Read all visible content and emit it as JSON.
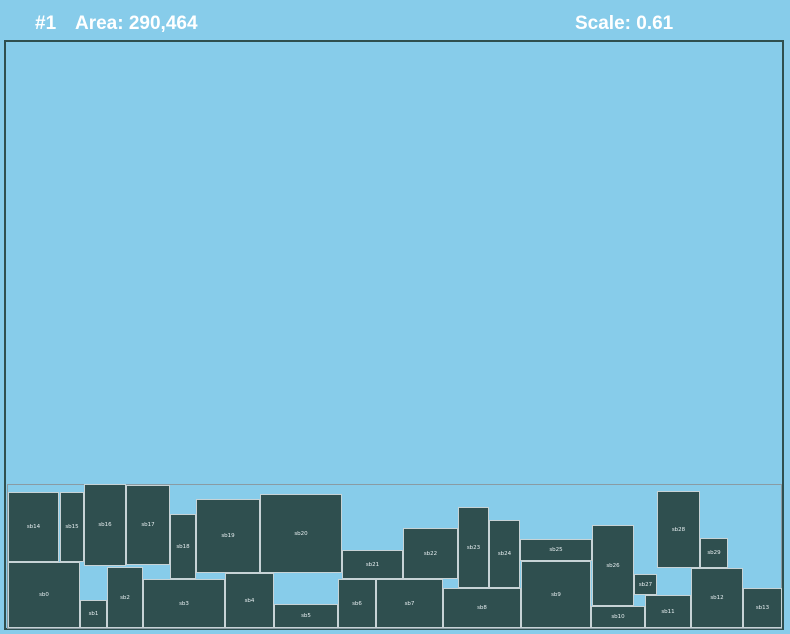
{
  "hud": {
    "index": "#1",
    "area": "Area: 290,464",
    "scale": "Scale: 0.61"
  },
  "colors": {
    "background": "#87CCEA",
    "block_fill": "#2F4F4F",
    "block_border": "#C7D3D6",
    "hud_text": "#FFFFFF"
  },
  "blocks": {
    "sb0": "sb0",
    "sb1": "sb1",
    "sb2": "sb2",
    "sb3": "sb3",
    "sb4": "sb4",
    "sb5": "sb5",
    "sb6": "sb6",
    "sb7": "sb7",
    "sb8": "sb8",
    "sb9": "sb9",
    "sb10": "sb10",
    "sb11": "sb11",
    "sb12": "sb12",
    "sb13": "sb13",
    "sb14": "sb14",
    "sb15": "sb15",
    "sb16": "sb16",
    "sb17": "sb17",
    "sb18": "sb18",
    "sb19": "sb19",
    "sb20": "sb20",
    "sb21": "sb21",
    "sb22": "sb22",
    "sb23": "sb23",
    "sb24": "sb24",
    "sb25": "sb25",
    "sb26": "sb26",
    "sb27": "sb27",
    "sb28": "sb28",
    "sb29": "sb29"
  }
}
